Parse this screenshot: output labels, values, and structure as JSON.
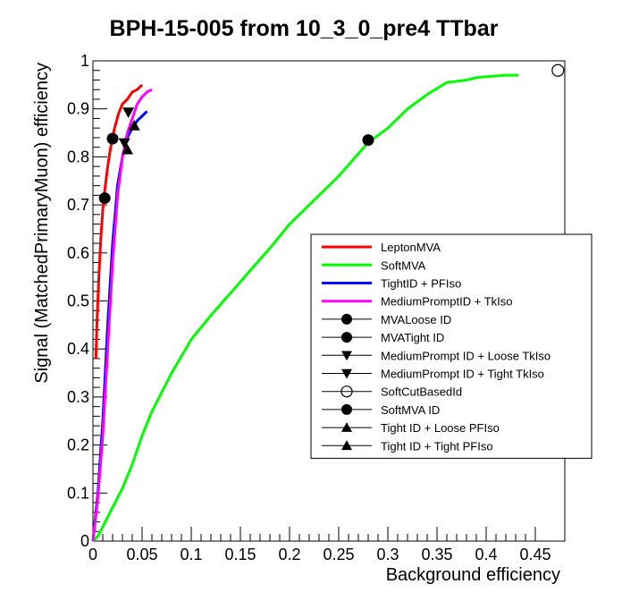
{
  "chart_data": {
    "type": "line",
    "title": "BPH-15-005 from 10_3_0_pre4 TTbar",
    "xlabel": "Background efficiency",
    "ylabel": "Signal (MatchedPrimaryMuon) efficiency",
    "xlim": [
      0,
      0.48
    ],
    "ylim": [
      0,
      1
    ],
    "xticks": [
      0,
      0.05,
      0.1,
      0.15,
      0.2,
      0.25,
      0.3,
      0.35,
      0.4,
      0.45
    ],
    "xtick_labels": [
      "0",
      "0.05",
      "0.1",
      "0.15",
      "0.2",
      "0.25",
      "0.3",
      "0.35",
      "0.4",
      "0.45"
    ],
    "yticks": [
      0,
      0.1,
      0.2,
      0.3,
      0.4,
      0.5,
      0.6,
      0.7,
      0.8,
      0.9,
      1
    ],
    "ytick_labels": [
      "0",
      "0.1",
      "0.2",
      "0.3",
      "0.4",
      "0.5",
      "0.6",
      "0.7",
      "0.8",
      "0.9",
      "1"
    ],
    "grid": false,
    "legend_position": "right",
    "series": [
      {
        "name": "LeptonMVA",
        "kind": "line",
        "color": "#ff0000",
        "x": [
          0.003,
          0.004,
          0.006,
          0.008,
          0.01,
          0.012,
          0.015,
          0.018,
          0.022,
          0.026,
          0.03,
          0.035,
          0.04,
          0.045,
          0.05
        ],
        "y": [
          0.38,
          0.45,
          0.55,
          0.63,
          0.69,
          0.73,
          0.78,
          0.82,
          0.86,
          0.89,
          0.91,
          0.92,
          0.935,
          0.94,
          0.95
        ]
      },
      {
        "name": "SoftMVA",
        "kind": "line",
        "color": "#00ff00",
        "x": [
          0,
          0.005,
          0.01,
          0.015,
          0.02,
          0.03,
          0.04,
          0.05,
          0.06,
          0.08,
          0.1,
          0.12,
          0.15,
          0.18,
          0.2,
          0.22,
          0.25,
          0.28,
          0.3,
          0.32,
          0.34,
          0.36,
          0.38,
          0.39,
          0.4,
          0.42,
          0.433
        ],
        "y": [
          0,
          0.01,
          0.03,
          0.05,
          0.07,
          0.11,
          0.16,
          0.22,
          0.27,
          0.35,
          0.42,
          0.47,
          0.54,
          0.61,
          0.66,
          0.7,
          0.76,
          0.83,
          0.86,
          0.9,
          0.93,
          0.955,
          0.96,
          0.965,
          0.967,
          0.97,
          0.97
        ]
      },
      {
        "name": "TightID + PFIso",
        "kind": "line",
        "color": "#0000ff",
        "x": [
          0,
          0.005,
          0.01,
          0.015,
          0.02,
          0.025,
          0.03,
          0.035,
          0.04,
          0.045,
          0.05,
          0.055
        ],
        "y": [
          0,
          0.1,
          0.25,
          0.45,
          0.62,
          0.74,
          0.8,
          0.84,
          0.86,
          0.875,
          0.885,
          0.895
        ]
      },
      {
        "name": "MediumPromptID + TkIso",
        "kind": "line",
        "color": "#ff00ff",
        "x": [
          0,
          0.005,
          0.01,
          0.015,
          0.02,
          0.025,
          0.03,
          0.035,
          0.04,
          0.045,
          0.05,
          0.055,
          0.06
        ],
        "y": [
          0,
          0.09,
          0.22,
          0.4,
          0.58,
          0.72,
          0.8,
          0.85,
          0.88,
          0.91,
          0.925,
          0.935,
          0.94
        ]
      },
      {
        "name": "MVALoose ID",
        "kind": "marker",
        "marker": "circle-filled",
        "x": [
          0.02
        ],
        "y": [
          0.838
        ]
      },
      {
        "name": "MVATight ID",
        "kind": "marker",
        "marker": "circle-filled",
        "x": [
          0.012
        ],
        "y": [
          0.714
        ]
      },
      {
        "name": "MediumPrompt ID + Loose TkIso",
        "kind": "marker",
        "marker": "triangle-down",
        "x": [
          0.036
        ],
        "y": [
          0.893
        ]
      },
      {
        "name": "MediumPrompt ID + Tight TkIso",
        "kind": "marker",
        "marker": "triangle-down",
        "x": [
          0.032
        ],
        "y": [
          0.829
        ]
      },
      {
        "name": "SoftCutBasedId",
        "kind": "marker",
        "marker": "circle-open",
        "x": [
          0.473
        ],
        "y": [
          0.98
        ]
      },
      {
        "name": "SoftMVA ID",
        "kind": "marker",
        "marker": "circle-filled",
        "x": [
          0.28
        ],
        "y": [
          0.835
        ]
      },
      {
        "name": "Tight ID + Loose PFIso",
        "kind": "marker",
        "marker": "triangle-up",
        "x": [
          0.042
        ],
        "y": [
          0.865
        ]
      },
      {
        "name": "Tight ID + Tight PFIso",
        "kind": "marker",
        "marker": "triangle-up",
        "x": [
          0.035
        ],
        "y": [
          0.815
        ]
      }
    ]
  }
}
